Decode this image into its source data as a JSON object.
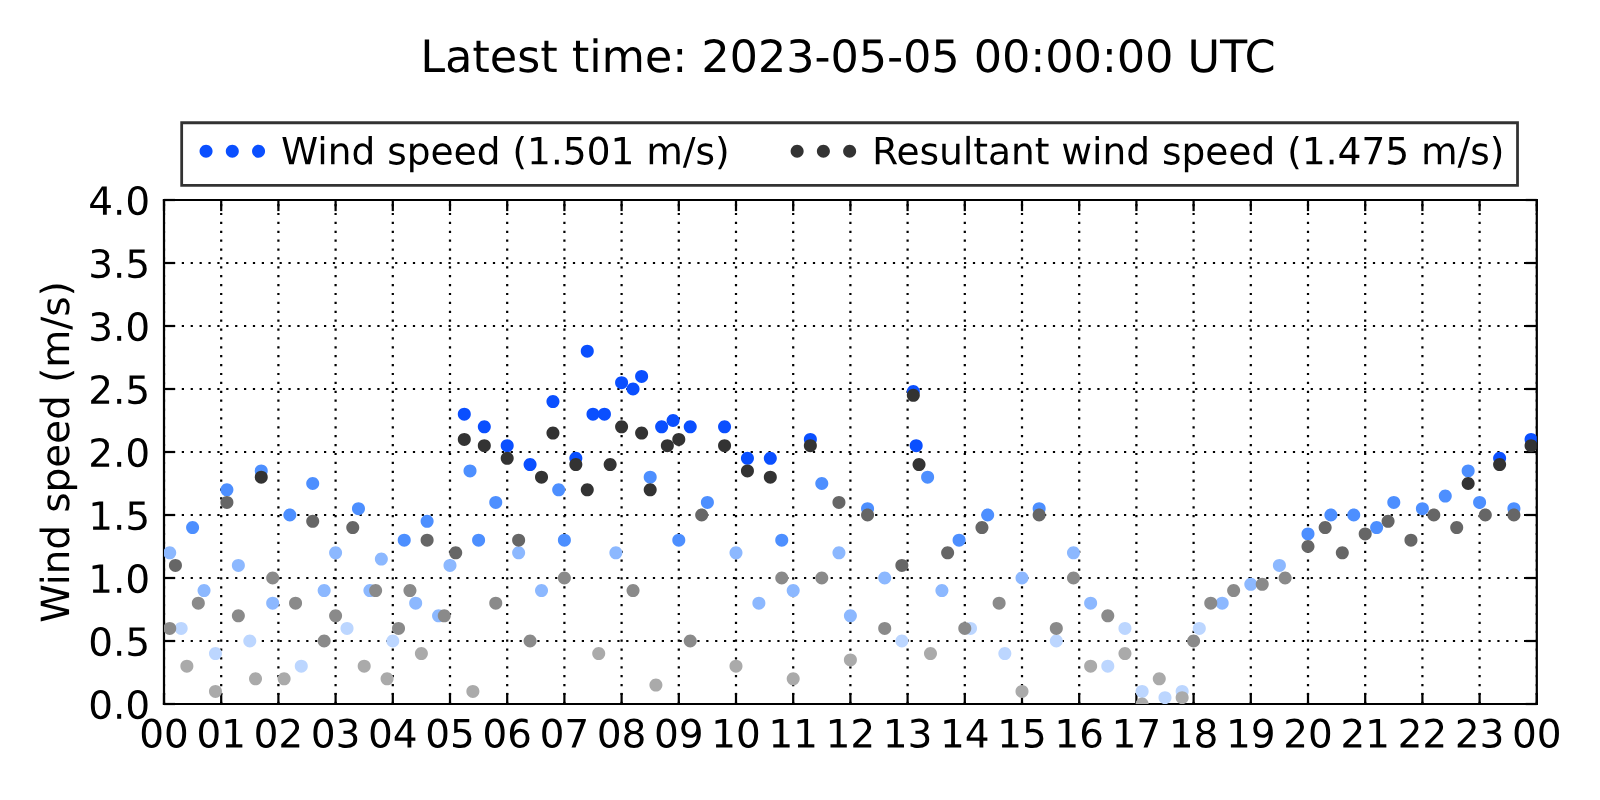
{
  "chart_data": {
    "type": "scatter",
    "title": "Latest time: 2023-05-05 00:00:00 UTC",
    "ylabel": "Wind speed (m/s)",
    "xlim": [
      0,
      24
    ],
    "xticks": [
      {
        "value": 0,
        "label": "00"
      },
      {
        "value": 1,
        "label": "01"
      },
      {
        "value": 2,
        "label": "02"
      },
      {
        "value": 3,
        "label": "03"
      },
      {
        "value": 4,
        "label": "04"
      },
      {
        "value": 5,
        "label": "05"
      },
      {
        "value": 6,
        "label": "06"
      },
      {
        "value": 7,
        "label": "07"
      },
      {
        "value": 8,
        "label": "08"
      },
      {
        "value": 9,
        "label": "09"
      },
      {
        "value": 10,
        "label": "10"
      },
      {
        "value": 11,
        "label": "11"
      },
      {
        "value": 12,
        "label": "12"
      },
      {
        "value": 13,
        "label": "13"
      },
      {
        "value": 14,
        "label": "14"
      },
      {
        "value": 15,
        "label": "15"
      },
      {
        "value": 16,
        "label": "16"
      },
      {
        "value": 17,
        "label": "17"
      },
      {
        "value": 18,
        "label": "18"
      },
      {
        "value": 19,
        "label": "19"
      },
      {
        "value": 20,
        "label": "20"
      },
      {
        "value": 21,
        "label": "21"
      },
      {
        "value": 22,
        "label": "22"
      },
      {
        "value": 23,
        "label": "23"
      },
      {
        "value": 24,
        "label": "00"
      }
    ],
    "ylim": [
      0.0,
      4.0
    ],
    "yticks": [
      {
        "value": 0,
        "label": "0.0"
      },
      0.5,
      {
        "value": 1,
        "label": "1.0"
      },
      1.5,
      {
        "value": 2,
        "label": "2.0"
      },
      2.5,
      {
        "value": 3,
        "label": "3.0"
      },
      3.5,
      {
        "value": 4,
        "label": "4.0"
      }
    ],
    "grid": true,
    "legend": "top",
    "marker": "circle",
    "series": [
      {
        "name": "Wind speed (1.501 m/s)",
        "color": "#0a4fff",
        "x": [
          0.1,
          0.3,
          0.5,
          0.7,
          0.9,
          1.1,
          1.3,
          1.5,
          1.7,
          1.9,
          2.2,
          2.4,
          2.6,
          2.8,
          3.0,
          3.2,
          3.4,
          3.6,
          3.8,
          4.0,
          4.2,
          4.4,
          4.6,
          4.8,
          5.0,
          5.25,
          5.35,
          5.5,
          5.6,
          5.8,
          6.0,
          6.2,
          6.4,
          6.6,
          6.8,
          6.9,
          7.0,
          7.2,
          7.4,
          7.5,
          7.7,
          7.9,
          8.0,
          8.2,
          8.35,
          8.5,
          8.7,
          8.9,
          9.0,
          9.2,
          9.5,
          9.8,
          10.0,
          10.2,
          10.4,
          10.6,
          10.8,
          11.0,
          11.3,
          11.5,
          11.8,
          12.0,
          12.3,
          12.6,
          12.9,
          13.1,
          13.15,
          13.35,
          13.6,
          13.9,
          14.1,
          14.4,
          14.7,
          15.0,
          15.3,
          15.6,
          15.9,
          16.2,
          16.5,
          16.8,
          17.1,
          17.5,
          17.8,
          18.1,
          18.5,
          19.0,
          19.5,
          20.0,
          20.4,
          20.8,
          21.2,
          21.5,
          22.0,
          22.4,
          22.8,
          23.0,
          23.35,
          23.6,
          23.9
        ],
        "values": [
          1.2,
          0.6,
          1.4,
          0.9,
          0.4,
          1.7,
          1.1,
          0.5,
          1.85,
          0.8,
          1.5,
          0.3,
          1.75,
          0.9,
          1.2,
          0.6,
          1.55,
          0.9,
          1.15,
          0.5,
          1.3,
          0.8,
          1.45,
          0.7,
          1.1,
          2.3,
          1.85,
          1.3,
          2.2,
          1.6,
          2.05,
          1.2,
          1.9,
          0.9,
          2.4,
          1.7,
          1.3,
          1.95,
          2.8,
          2.3,
          2.3,
          1.2,
          2.55,
          2.5,
          2.6,
          1.8,
          2.2,
          2.25,
          1.3,
          2.2,
          1.6,
          2.2,
          1.2,
          1.95,
          0.8,
          1.95,
          1.3,
          0.9,
          2.1,
          1.75,
          1.2,
          0.7,
          1.55,
          1.0,
          0.5,
          2.48,
          2.05,
          1.8,
          0.9,
          1.3,
          0.6,
          1.5,
          0.4,
          1.0,
          1.55,
          0.5,
          1.2,
          0.8,
          0.3,
          0.6,
          0.1,
          0.05,
          0.1,
          0.6,
          0.8,
          0.95,
          1.1,
          1.35,
          1.5,
          1.5,
          1.4,
          1.6,
          1.55,
          1.65,
          1.85,
          1.6,
          1.95,
          1.55,
          2.1
        ],
        "colors": [
          "#8cb8ff",
          "#bcd6ff",
          "#4d8fff",
          "#8cb8ff",
          "#bcd6ff",
          "#4d8fff",
          "#8cb8ff",
          "#bcd6ff",
          "#4d8fff",
          "#8cb8ff",
          "#4d8fff",
          "#bcd6ff",
          "#4d8fff",
          "#8cb8ff",
          "#8cb8ff",
          "#bcd6ff",
          "#4d8fff",
          "#8cb8ff",
          "#8cb8ff",
          "#bcd6ff",
          "#4d8fff",
          "#8cb8ff",
          "#4d8fff",
          "#8cb8ff",
          "#8cb8ff",
          "#0a4fff",
          "#4d8fff",
          "#4d8fff",
          "#0a4fff",
          "#4d8fff",
          "#0a4fff",
          "#8cb8ff",
          "#0a4fff",
          "#8cb8ff",
          "#0a4fff",
          "#4d8fff",
          "#4d8fff",
          "#0a4fff",
          "#0a4fff",
          "#0a4fff",
          "#0a4fff",
          "#8cb8ff",
          "#0a4fff",
          "#0a4fff",
          "#0a4fff",
          "#4d8fff",
          "#0a4fff",
          "#0a4fff",
          "#4d8fff",
          "#0a4fff",
          "#4d8fff",
          "#0a4fff",
          "#8cb8ff",
          "#0a4fff",
          "#8cb8ff",
          "#0a4fff",
          "#4d8fff",
          "#8cb8ff",
          "#0a4fff",
          "#4d8fff",
          "#8cb8ff",
          "#8cb8ff",
          "#4d8fff",
          "#8cb8ff",
          "#bcd6ff",
          "#0a4fff",
          "#0a4fff",
          "#4d8fff",
          "#8cb8ff",
          "#4d8fff",
          "#bcd6ff",
          "#4d8fff",
          "#bcd6ff",
          "#8cb8ff",
          "#4d8fff",
          "#bcd6ff",
          "#8cb8ff",
          "#8cb8ff",
          "#bcd6ff",
          "#bcd6ff",
          "#bcd6ff",
          "#bcd6ff",
          "#bcd6ff",
          "#bcd6ff",
          "#8cb8ff",
          "#8cb8ff",
          "#8cb8ff",
          "#4d8fff",
          "#4d8fff",
          "#4d8fff",
          "#4d8fff",
          "#4d8fff",
          "#4d8fff",
          "#4d8fff",
          "#4d8fff",
          "#4d8fff",
          "#0a4fff",
          "#4d8fff",
          "#0a4fff"
        ]
      },
      {
        "name": "Resultant wind speed (1.475 m/s)",
        "color": "#333333",
        "x": [
          0.1,
          0.2,
          0.4,
          0.6,
          0.9,
          1.1,
          1.3,
          1.6,
          1.7,
          1.9,
          2.1,
          2.3,
          2.6,
          2.8,
          3.0,
          3.3,
          3.5,
          3.7,
          3.9,
          4.1,
          4.3,
          4.5,
          4.6,
          4.9,
          5.1,
          5.25,
          5.4,
          5.6,
          5.8,
          6.0,
          6.2,
          6.4,
          6.6,
          6.8,
          7.0,
          7.2,
          7.4,
          7.6,
          7.8,
          8.0,
          8.2,
          8.35,
          8.5,
          8.6,
          8.8,
          9.0,
          9.2,
          9.4,
          9.8,
          10.0,
          10.2,
          10.6,
          10.8,
          11.0,
          11.3,
          11.5,
          11.8,
          12.0,
          12.3,
          12.6,
          12.9,
          13.1,
          13.2,
          13.4,
          13.7,
          14.0,
          14.3,
          14.6,
          15.0,
          15.3,
          15.6,
          15.9,
          16.2,
          16.5,
          16.8,
          17.1,
          17.4,
          17.8,
          18.0,
          18.3,
          18.7,
          19.2,
          19.6,
          20.0,
          20.3,
          20.6,
          21.0,
          21.4,
          21.8,
          22.2,
          22.6,
          22.8,
          23.1,
          23.35,
          23.6,
          23.9
        ],
        "values": [
          0.6,
          1.1,
          0.3,
          0.8,
          0.1,
          1.6,
          0.7,
          0.2,
          1.8,
          1.0,
          0.2,
          0.8,
          1.45,
          0.5,
          0.7,
          1.4,
          0.3,
          0.9,
          0.2,
          0.6,
          0.9,
          0.4,
          1.3,
          0.7,
          1.2,
          2.1,
          0.1,
          2.05,
          0.8,
          1.95,
          1.3,
          0.5,
          1.8,
          2.15,
          1.0,
          1.9,
          1.7,
          0.4,
          1.9,
          2.2,
          0.9,
          2.15,
          1.7,
          0.15,
          2.05,
          2.1,
          0.5,
          1.5,
          2.05,
          0.3,
          1.85,
          1.8,
          1.0,
          0.2,
          2.05,
          1.0,
          1.6,
          0.35,
          1.5,
          0.6,
          1.1,
          2.45,
          1.9,
          0.4,
          1.2,
          0.6,
          1.4,
          0.8,
          0.1,
          1.5,
          0.6,
          1.0,
          0.3,
          0.7,
          0.4,
          0.0,
          0.2,
          0.05,
          0.5,
          0.8,
          0.9,
          0.95,
          1.0,
          1.25,
          1.4,
          1.2,
          1.35,
          1.45,
          1.3,
          1.5,
          1.4,
          1.75,
          1.5,
          1.9,
          1.5,
          2.05
        ],
        "colors": [
          "#8a8a8a",
          "#666666",
          "#aaaaaa",
          "#8a8a8a",
          "#aaaaaa",
          "#666666",
          "#8a8a8a",
          "#aaaaaa",
          "#333333",
          "#8a8a8a",
          "#aaaaaa",
          "#8a8a8a",
          "#666666",
          "#8a8a8a",
          "#8a8a8a",
          "#666666",
          "#aaaaaa",
          "#8a8a8a",
          "#aaaaaa",
          "#8a8a8a",
          "#8a8a8a",
          "#aaaaaa",
          "#666666",
          "#8a8a8a",
          "#666666",
          "#333333",
          "#aaaaaa",
          "#333333",
          "#8a8a8a",
          "#333333",
          "#666666",
          "#8a8a8a",
          "#333333",
          "#333333",
          "#8a8a8a",
          "#333333",
          "#333333",
          "#aaaaaa",
          "#333333",
          "#333333",
          "#8a8a8a",
          "#333333",
          "#333333",
          "#aaaaaa",
          "#333333",
          "#333333",
          "#8a8a8a",
          "#666666",
          "#333333",
          "#aaaaaa",
          "#333333",
          "#333333",
          "#8a8a8a",
          "#aaaaaa",
          "#333333",
          "#8a8a8a",
          "#666666",
          "#aaaaaa",
          "#666666",
          "#8a8a8a",
          "#666666",
          "#333333",
          "#333333",
          "#aaaaaa",
          "#666666",
          "#8a8a8a",
          "#666666",
          "#8a8a8a",
          "#aaaaaa",
          "#666666",
          "#8a8a8a",
          "#8a8a8a",
          "#aaaaaa",
          "#8a8a8a",
          "#aaaaaa",
          "#aaaaaa",
          "#aaaaaa",
          "#aaaaaa",
          "#8a8a8a",
          "#8a8a8a",
          "#8a8a8a",
          "#8a8a8a",
          "#8a8a8a",
          "#666666",
          "#666666",
          "#666666",
          "#666666",
          "#666666",
          "#666666",
          "#666666",
          "#666666",
          "#333333",
          "#666666",
          "#333333",
          "#666666",
          "#333333"
        ]
      }
    ]
  }
}
